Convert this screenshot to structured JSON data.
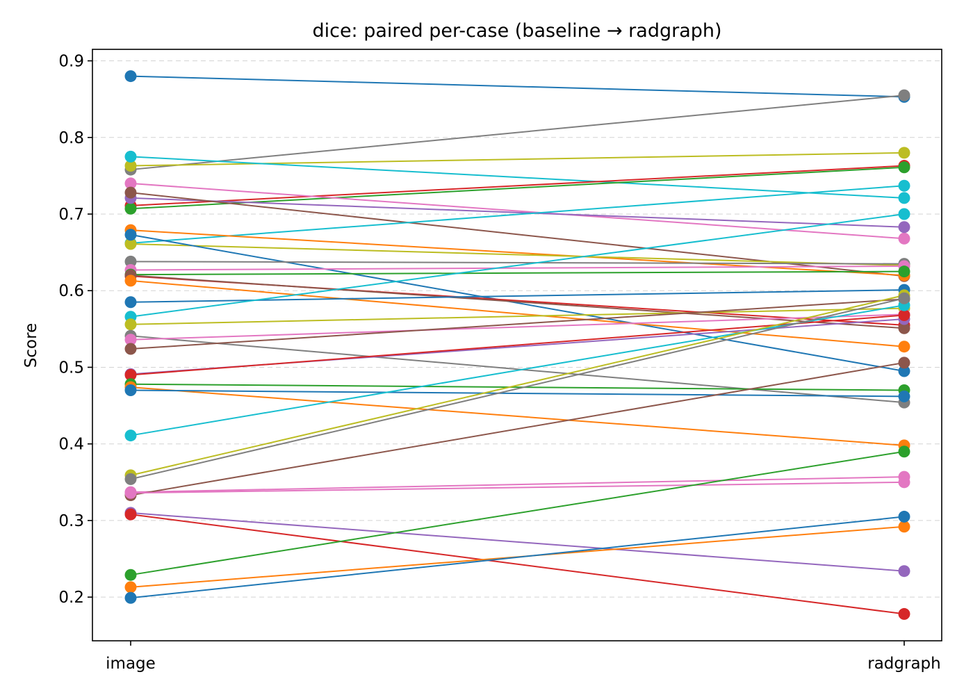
{
  "chart_data": {
    "type": "line",
    "title": "dice: paired per-case (baseline → radgraph)",
    "xlabel": "",
    "ylabel": "Score",
    "categories": [
      "image",
      "radgraph"
    ],
    "ylim": [
      0.143,
      0.915
    ],
    "yticks": [
      "0.2",
      "0.3",
      "0.4",
      "0.5",
      "0.6",
      "0.7",
      "0.8",
      "0.9"
    ],
    "grid": "y-dashed",
    "colors": [
      "#1f77b4",
      "#ff7f0e",
      "#2ca02c",
      "#d62728",
      "#9467bd",
      "#8c564b",
      "#e377c2",
      "#7f7f7f",
      "#bcbd22",
      "#17becf"
    ],
    "pairs": [
      {
        "color": "#1f77b4",
        "values": [
          0.88,
          0.853
        ]
      },
      {
        "color": "#7f7f7f",
        "values": [
          0.758,
          0.855
        ]
      },
      {
        "color": "#bcbd22",
        "values": [
          0.763,
          0.78
        ]
      },
      {
        "color": "#17becf",
        "values": [
          0.775,
          0.721
        ]
      },
      {
        "color": "#d62728",
        "values": [
          0.711,
          0.763
        ]
      },
      {
        "color": "#2ca02c",
        "values": [
          0.707,
          0.761
        ]
      },
      {
        "color": "#e377c2",
        "values": [
          0.74,
          0.668
        ]
      },
      {
        "color": "#9467bd",
        "values": [
          0.721,
          0.683
        ]
      },
      {
        "color": "#8c564b",
        "values": [
          0.728,
          0.619
        ]
      },
      {
        "color": "#17becf",
        "values": [
          0.662,
          0.737
        ]
      },
      {
        "color": "#ff7f0e",
        "values": [
          0.679,
          0.62
        ]
      },
      {
        "color": "#bcbd22",
        "values": [
          0.661,
          0.633
        ]
      },
      {
        "color": "#1f77b4",
        "values": [
          0.673,
          0.495
        ]
      },
      {
        "color": "#7f7f7f",
        "values": [
          0.638,
          0.635
        ]
      },
      {
        "color": "#e377c2",
        "values": [
          0.627,
          0.632
        ]
      },
      {
        "color": "#2ca02c",
        "values": [
          0.621,
          0.625
        ]
      },
      {
        "color": "#d62728",
        "values": [
          0.619,
          0.555
        ]
      },
      {
        "color": "#8c564b",
        "values": [
          0.62,
          0.551
        ]
      },
      {
        "color": "#ff7f0e",
        "values": [
          0.613,
          0.527
        ]
      },
      {
        "color": "#1f77b4",
        "values": [
          0.585,
          0.601
        ]
      },
      {
        "color": "#17becf",
        "values": [
          0.566,
          0.7
        ]
      },
      {
        "color": "#bcbd22",
        "values": [
          0.556,
          0.577
        ]
      },
      {
        "color": "#7f7f7f",
        "values": [
          0.541,
          0.454
        ]
      },
      {
        "color": "#e377c2",
        "values": [
          0.536,
          0.569
        ]
      },
      {
        "color": "#8c564b",
        "values": [
          0.524,
          0.589
        ]
      },
      {
        "color": "#9467bd",
        "values": [
          0.491,
          0.563
        ]
      },
      {
        "color": "#d62728",
        "values": [
          0.49,
          0.568
        ]
      },
      {
        "color": "#2ca02c",
        "values": [
          0.478,
          0.47
        ]
      },
      {
        "color": "#ff7f0e",
        "values": [
          0.474,
          0.398
        ]
      },
      {
        "color": "#1f77b4",
        "values": [
          0.47,
          0.462
        ]
      },
      {
        "color": "#17becf",
        "values": [
          0.411,
          0.581
        ]
      },
      {
        "color": "#bcbd22",
        "values": [
          0.359,
          0.594
        ]
      },
      {
        "color": "#7f7f7f",
        "values": [
          0.354,
          0.59
        ]
      },
      {
        "color": "#e377c2",
        "values": [
          0.337,
          0.357
        ]
      },
      {
        "color": "#8c564b",
        "values": [
          0.333,
          0.506
        ]
      },
      {
        "color": "#e377c2",
        "values": [
          0.336,
          0.35
        ]
      },
      {
        "color": "#9467bd",
        "values": [
          0.31,
          0.234
        ]
      },
      {
        "color": "#d62728",
        "values": [
          0.308,
          0.178
        ]
      },
      {
        "color": "#2ca02c",
        "values": [
          0.229,
          0.39
        ]
      },
      {
        "color": "#ff7f0e",
        "values": [
          0.213,
          0.292
        ]
      },
      {
        "color": "#1f77b4",
        "values": [
          0.199,
          0.305
        ]
      }
    ]
  }
}
